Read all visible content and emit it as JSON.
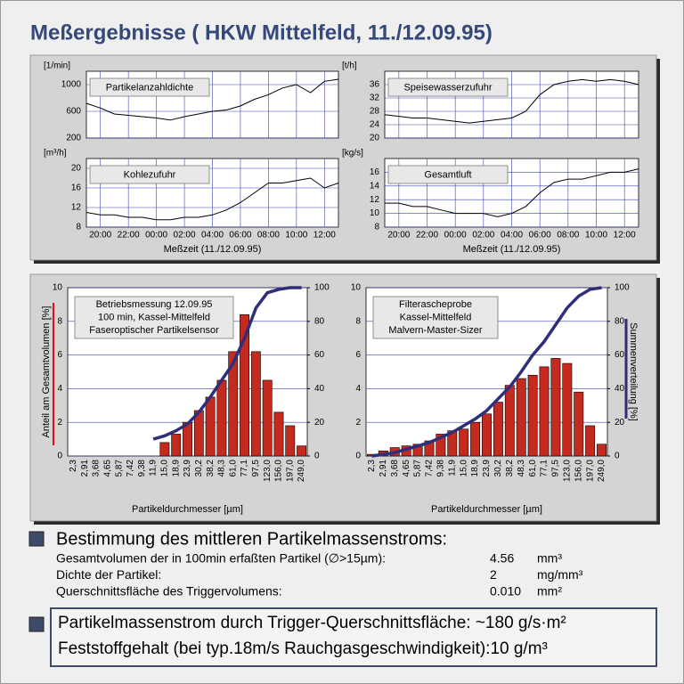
{
  "title": "Meßergebnisse ( HKW Mittelfeld, 11./12.09.95)",
  "chart_data": [
    {
      "type": "line",
      "legend_label": "Partikelanzahldichte",
      "y_unit": "[1/min]",
      "x": [
        19,
        20,
        21,
        22,
        23,
        24,
        25,
        26,
        27,
        28,
        29,
        30,
        31,
        32,
        33,
        34,
        35,
        36,
        37
      ],
      "xlim": [
        19,
        37
      ],
      "xgrid": [
        20,
        22,
        24,
        26,
        28,
        30,
        32,
        34,
        36
      ],
      "ylim": [
        200,
        1200
      ],
      "yticks": [
        200,
        600,
        1000
      ],
      "series": [
        {
          "color": "#000000",
          "values": [
            720,
            650,
            560,
            540,
            520,
            500,
            470,
            520,
            560,
            600,
            620,
            680,
            780,
            850,
            950,
            1000,
            880,
            1050,
            1080
          ]
        }
      ]
    },
    {
      "type": "line",
      "legend_label": "Speisewasserzufuhr",
      "y_unit": "[t/h]",
      "x": [
        19,
        20,
        21,
        22,
        23,
        24,
        25,
        26,
        27,
        28,
        29,
        30,
        31,
        32,
        33,
        34,
        35,
        36,
        37
      ],
      "xlim": [
        19,
        37
      ],
      "xgrid": [
        20,
        22,
        24,
        26,
        28,
        30,
        32,
        34,
        36
      ],
      "ylim": [
        20,
        40
      ],
      "yticks": [
        20,
        24,
        28,
        32,
        36
      ],
      "series": [
        {
          "color": "#000000",
          "values": [
            27,
            26.5,
            26,
            26,
            25.5,
            25,
            24.5,
            25,
            25.5,
            26,
            28,
            33,
            36,
            37,
            37.5,
            37,
            37.5,
            37,
            36
          ]
        }
      ]
    },
    {
      "type": "line",
      "legend_label": "Kohlezufuhr",
      "y_unit": "[m³/h]",
      "x_label": "Meßzeit (11./12.09.95)",
      "x": [
        19,
        20,
        21,
        22,
        23,
        24,
        25,
        26,
        27,
        28,
        29,
        30,
        31,
        32,
        33,
        34,
        35,
        36,
        37
      ],
      "xlim": [
        19,
        37
      ],
      "xticks": [
        {
          "value": 20,
          "label": "20:00"
        },
        {
          "value": 22,
          "label": "22:00"
        },
        {
          "value": 24,
          "label": "00:00"
        },
        {
          "value": 26,
          "label": "02:00"
        },
        {
          "value": 28,
          "label": "04:00"
        },
        {
          "value": 30,
          "label": "06:00"
        },
        {
          "value": 32,
          "label": "08:00"
        },
        {
          "value": 34,
          "label": "10:00"
        },
        {
          "value": 36,
          "label": "12:00"
        }
      ],
      "ylim": [
        8,
        22
      ],
      "yticks": [
        8,
        12,
        16,
        20
      ],
      "series": [
        {
          "color": "#000000",
          "values": [
            11,
            10.5,
            10.5,
            10,
            10,
            9.5,
            9.5,
            10,
            10,
            10.5,
            11.5,
            13,
            15,
            17,
            17,
            17.5,
            18,
            16,
            17
          ]
        }
      ]
    },
    {
      "type": "line",
      "legend_label": "Gesamtluft",
      "y_unit": "[kg/s]",
      "x_label": "Meßzeit (11./12.09.95)",
      "x": [
        19,
        20,
        21,
        22,
        23,
        24,
        25,
        26,
        27,
        28,
        29,
        30,
        31,
        32,
        33,
        34,
        35,
        36,
        37
      ],
      "xlim": [
        19,
        37
      ],
      "xticks": [
        {
          "value": 20,
          "label": "20:00"
        },
        {
          "value": 22,
          "label": "22:00"
        },
        {
          "value": 24,
          "label": "00:00"
        },
        {
          "value": 26,
          "label": "02:00"
        },
        {
          "value": 28,
          "label": "04:00"
        },
        {
          "value": 30,
          "label": "06:00"
        },
        {
          "value": 32,
          "label": "08:00"
        },
        {
          "value": 34,
          "label": "10:00"
        },
        {
          "value": 36,
          "label": "12:00"
        }
      ],
      "ylim": [
        8,
        18
      ],
      "yticks": [
        8,
        10,
        12,
        14,
        16
      ],
      "series": [
        {
          "color": "#000000",
          "values": [
            11.5,
            11.5,
            11,
            11,
            10.5,
            10,
            10,
            10,
            9.5,
            10,
            11,
            13,
            14.5,
            15,
            15,
            15.5,
            16,
            16,
            16.5
          ]
        }
      ]
    },
    {
      "type": "bar",
      "annotation": [
        "Betriebsmessung 12.09.95",
        "100 min, Kassel-Mittelfeld",
        "Faseroptischer Partikelsensor"
      ],
      "y_label": "Anteil am Gesamtvolumen [%]",
      "x_label": "Partikeldurchmesser [µm]",
      "categories": [
        "2,3",
        "2,91",
        "3,68",
        "4,65",
        "5,87",
        "7,42",
        "9,38",
        "11,9",
        "15,0",
        "18,9",
        "23,9",
        "30,2",
        "38,2",
        "48,3",
        "61,0",
        "77,1",
        "97,5",
        "123,0",
        "156,0",
        "197,0",
        "249,0"
      ],
      "ylim": [
        0,
        10
      ],
      "yticks": [
        0,
        2,
        4,
        6,
        8,
        10
      ],
      "y2lim": [
        0,
        100
      ],
      "y2ticks": [
        0,
        20,
        40,
        60,
        80,
        100
      ],
      "series": [
        {
          "color": "#c42a1e",
          "values": [
            0,
            0,
            0,
            0,
            0,
            0,
            0,
            0,
            0.8,
            1.3,
            2.0,
            2.7,
            3.5,
            4.5,
            6.2,
            8.4,
            6.2,
            4.5,
            2.6,
            1.8,
            0.6
          ]
        },
        {
          "type": "line",
          "axis": "y2",
          "color": "#2e2e7a",
          "values": [
            null,
            null,
            null,
            null,
            null,
            null,
            null,
            10,
            12,
            15,
            19,
            26,
            35,
            45,
            55,
            70,
            88,
            97,
            99,
            100,
            100
          ]
        }
      ]
    },
    {
      "type": "bar",
      "annotation": [
        "Filterascheprobe",
        "Kassel-Mittelfeld",
        "Malvern-Master-Sizer"
      ],
      "y2_label": "Summenverteilung [%]",
      "x_label": "Partikeldurchmesser [µm]",
      "categories": [
        "2,3",
        "2,91",
        "3,68",
        "4,65",
        "5,87",
        "7,42",
        "9,38",
        "11,9",
        "15,0",
        "18,9",
        "23,9",
        "30,2",
        "38,2",
        "48,3",
        "61,0",
        "77,1",
        "97,5",
        "123,0",
        "156,0",
        "197,0",
        "249,0"
      ],
      "ylim": [
        0,
        10
      ],
      "yticks": [
        0,
        2,
        4,
        6,
        8,
        10
      ],
      "y2lim": [
        0,
        100
      ],
      "y2ticks": [
        0,
        20,
        40,
        60,
        80,
        100
      ],
      "series": [
        {
          "color": "#c42a1e",
          "values": [
            0.1,
            0.3,
            0.5,
            0.6,
            0.7,
            0.9,
            1.3,
            1.5,
            1.6,
            2.0,
            2.5,
            3.2,
            4.2,
            4.6,
            4.8,
            5.3,
            5.8,
            5.5,
            3.8,
            1.8,
            0.7
          ]
        },
        {
          "type": "line",
          "axis": "y2",
          "color": "#2e2e7a",
          "values": [
            0,
            1,
            2,
            4,
            6,
            8,
            11,
            14,
            18,
            22,
            27,
            34,
            41,
            50,
            60,
            68,
            78,
            88,
            95,
            99,
            100
          ]
        }
      ]
    }
  ],
  "summary": {
    "heading": "Bestimmung des mittleren Partikelmassenstroms:",
    "rows": [
      [
        "Gesamtvolumen der in 100min erfaßten Partikel (∅>15µm):",
        "4.56",
        "mm³"
      ],
      [
        "Dichte der Partikel:",
        "2",
        "mg/mm³"
      ],
      [
        "Querschnittsfläche des Triggervolumens:",
        "0.010",
        "mm²"
      ]
    ],
    "result_lines": [
      "Partikelmassenstrom durch Trigger-Querschnittsfläche:  ~180 g/s·m²",
      "Feststoffgehalt (bei typ.18m/s Rauchgasgeschwindigkeit):10 g/m³"
    ]
  }
}
